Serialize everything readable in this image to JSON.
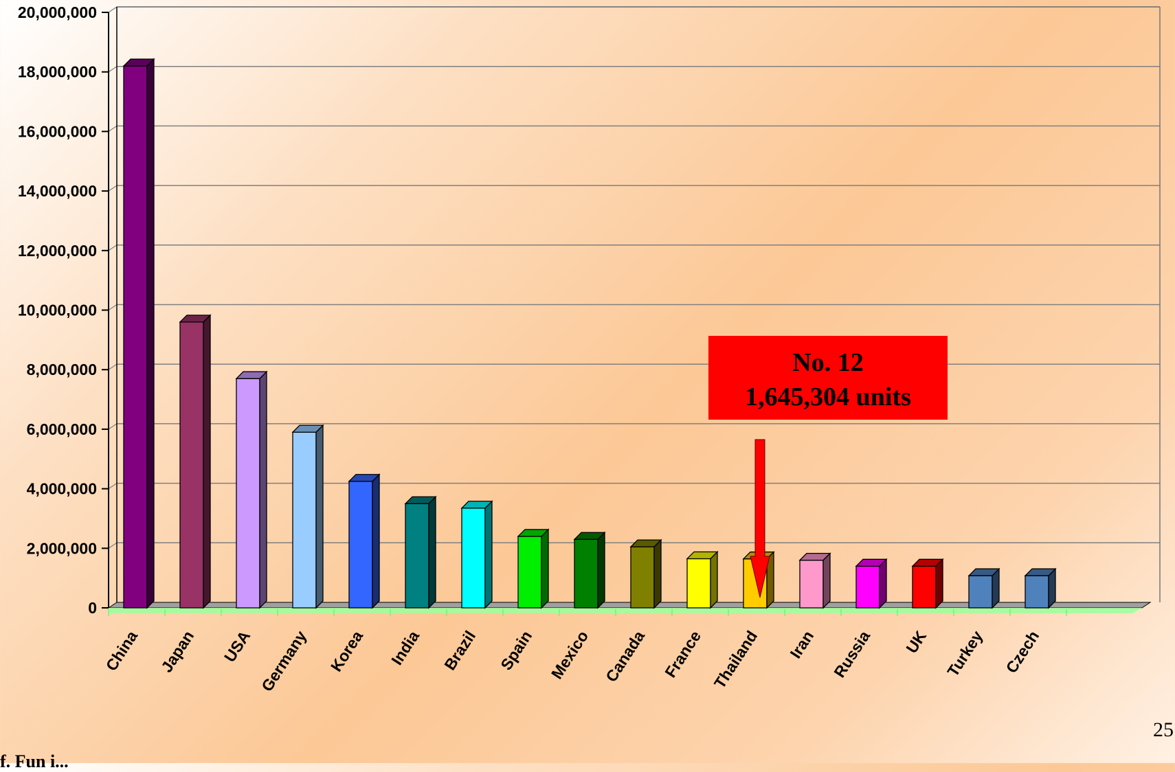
{
  "chart_data": {
    "type": "bar",
    "categories": [
      "China",
      "Japan",
      "USA",
      "Germany",
      "Korea",
      "India",
      "Brazil",
      "Spain",
      "Mexico",
      "Canada",
      "France",
      "Thailand",
      "Iran",
      "Russia",
      "UK",
      "Turkey",
      "Czech"
    ],
    "values": [
      18200000,
      9600000,
      7700000,
      5900000,
      4250000,
      3500000,
      3350000,
      2400000,
      2300000,
      2050000,
      1650000,
      1645304,
      1600000,
      1400000,
      1400000,
      1080000,
      1080000
    ],
    "colors": [
      "#800080",
      "#993366",
      "#cc99ff",
      "#99ccff",
      "#3366ff",
      "#008080",
      "#00ffff",
      "#00ee00",
      "#008000",
      "#808000",
      "#ffff00",
      "#ffcc00",
      "#ff99cc",
      "#ff00ff",
      "#ff0000",
      "#4f81bd",
      "#4f81bd"
    ],
    "ylim": [
      0,
      20000000
    ],
    "yticks": [
      "0",
      "2,000,000",
      "4,000,000",
      "6,000,000",
      "8,000,000",
      "10,000,000",
      "12,000,000",
      "14,000,000",
      "16,000,000",
      "18,000,000",
      "20,000,000"
    ],
    "grid": true,
    "callout": {
      "line1": "No. 12",
      "line2": "1,645,304 units",
      "target_category": "Thailand",
      "box_color": "#ff0000"
    }
  },
  "page": {
    "number": "25",
    "footer": "f. Fun i..."
  }
}
